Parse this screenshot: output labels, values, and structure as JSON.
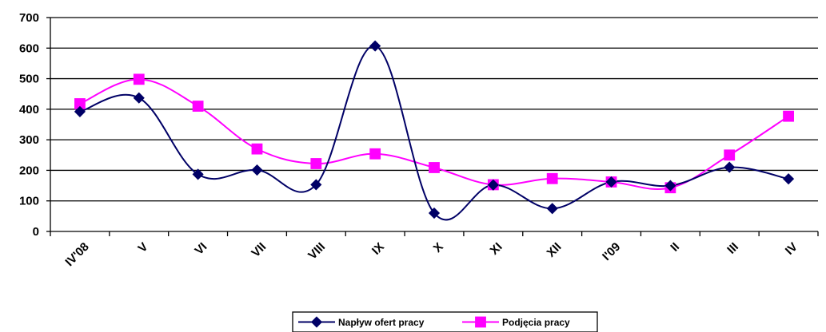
{
  "chart_data": {
    "type": "line",
    "categories": [
      "IV'08",
      "V",
      "VI",
      "VII",
      "VIII",
      "IX",
      "X",
      "XI",
      "XII",
      "I'09",
      "II",
      "III",
      "IV"
    ],
    "ylim": [
      0,
      700
    ],
    "yticks": [
      0,
      100,
      200,
      300,
      400,
      500,
      600,
      700
    ],
    "grid": true,
    "smooth": true,
    "legend_position": "bottom",
    "series": [
      {
        "name": "Napływ ofert pracy",
        "color": "#000066",
        "marker": "diamond",
        "values": [
          392,
          437,
          187,
          201,
          153,
          607,
          60,
          152,
          75,
          162,
          150,
          210,
          172
        ]
      },
      {
        "name": "Podjęcia pracy",
        "color": "#ff00ff",
        "marker": "square",
        "values": [
          418,
          498,
          410,
          270,
          222,
          254,
          209,
          153,
          173,
          162,
          143,
          250,
          377
        ]
      }
    ]
  }
}
